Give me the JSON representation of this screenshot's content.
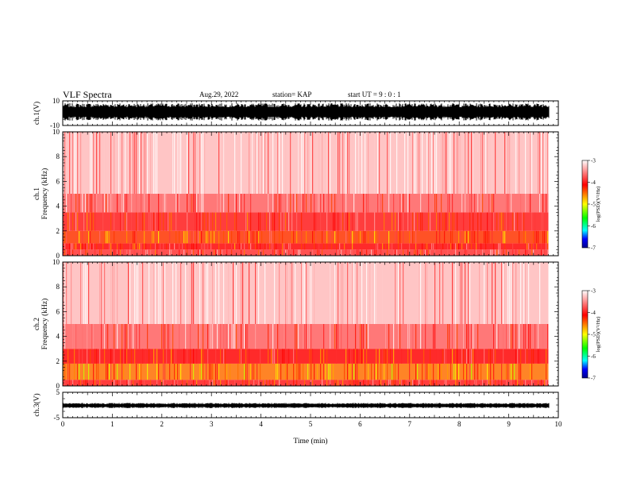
{
  "header": {
    "title": "VLF Spectra",
    "date": "Aug.29, 2022",
    "station": "station= KAP",
    "start": "start UT =  9 : 0 : 1"
  },
  "colors": {
    "colormap": [
      "#ffffff",
      "#ff0000",
      "#ffff00",
      "#00ff00",
      "#00ffff",
      "#0000ff",
      "#00008b"
    ]
  },
  "chart_data": [
    {
      "id": "ch1-waveform",
      "type": "line",
      "ylabel": "ch.1(V)",
      "ylim": [
        -10,
        10
      ],
      "yticks": [
        {
          "v": 10,
          "label": "10"
        },
        {
          "v": -10,
          "label": "-10"
        }
      ],
      "xlim": [
        0,
        10
      ],
      "series": [
        {
          "x": [
            0,
            9.8
          ],
          "envelope_V": [
            -6,
            8
          ]
        }
      ]
    },
    {
      "id": "ch1-spectrogram",
      "type": "heatmap",
      "ylabel": "ch.1\nFrequency (kHz)",
      "ylim": [
        0,
        10
      ],
      "yticks": [
        {
          "v": 0,
          "label": "0"
        },
        {
          "v": 2,
          "label": "2"
        },
        {
          "v": 4,
          "label": "4"
        },
        {
          "v": 6,
          "label": "6"
        },
        {
          "v": 8,
          "label": "8"
        },
        {
          "v": 10,
          "label": "10"
        }
      ],
      "xlim": [
        0,
        10
      ],
      "data_x_end_min": 9.8,
      "colorbar": {
        "label": "log(PSD)(V²/Hz)",
        "range": [
          -7,
          -3
        ],
        "ticks": [
          "-3",
          "-4",
          "-5",
          "-6",
          "-7"
        ]
      },
      "bands_kHz_log10PSD": [
        {
          "f": [
            0,
            0.5
          ],
          "log_psd": -3.9
        },
        {
          "f": [
            0.5,
            1.0
          ],
          "log_psd": -4.1
        },
        {
          "f": [
            1.0,
            2.0
          ],
          "log_psd": -4.3
        },
        {
          "f": [
            2.0,
            3.5
          ],
          "log_psd": -4.0
        },
        {
          "f": [
            3.5,
            5.0
          ],
          "log_psd": -3.7
        },
        {
          "f": [
            5.0,
            10.0
          ],
          "log_psd": -3.3
        }
      ]
    },
    {
      "id": "ch2-spectrogram",
      "type": "heatmap",
      "ylabel": "ch.2\nFrequency (kHz)",
      "ylim": [
        0,
        10
      ],
      "yticks": [
        {
          "v": 0,
          "label": "0"
        },
        {
          "v": 2,
          "label": "2"
        },
        {
          "v": 4,
          "label": "4"
        },
        {
          "v": 6,
          "label": "6"
        },
        {
          "v": 8,
          "label": "8"
        },
        {
          "v": 10,
          "label": "10"
        }
      ],
      "xlim": [
        0,
        10
      ],
      "data_x_end_min": 9.8,
      "colorbar": {
        "label": "log(PSD)(V²/Hz)",
        "range": [
          -7,
          -3
        ],
        "ticks": [
          "-3",
          "-4",
          "-5",
          "-6",
          "-7"
        ]
      },
      "bands_kHz_log10PSD": [
        {
          "f": [
            0,
            0.5
          ],
          "log_psd": -4.0
        },
        {
          "f": [
            0.5,
            1.8
          ],
          "log_psd": -4.5
        },
        {
          "f": [
            1.8,
            3.0
          ],
          "log_psd": -4.1
        },
        {
          "f": [
            3.0,
            5.0
          ],
          "log_psd": -3.7
        },
        {
          "f": [
            5.0,
            10.0
          ],
          "log_psd": -3.3
        }
      ]
    },
    {
      "id": "ch3-waveform",
      "type": "line",
      "ylabel": "ch.3(V)",
      "ylim": [
        -5,
        5
      ],
      "yticks": [
        {
          "v": 5,
          "label": "5"
        },
        {
          "v": -5,
          "label": "-5"
        }
      ],
      "xlim": [
        0,
        10
      ],
      "xlabel": "Time (min)",
      "xticks": [
        {
          "v": 0,
          "label": "0"
        },
        {
          "v": 1,
          "label": "1"
        },
        {
          "v": 2,
          "label": "2"
        },
        {
          "v": 3,
          "label": "3"
        },
        {
          "v": 4,
          "label": "4"
        },
        {
          "v": 5,
          "label": "5"
        },
        {
          "v": 6,
          "label": "6"
        },
        {
          "v": 7,
          "label": "7"
        },
        {
          "v": 8,
          "label": "8"
        },
        {
          "v": 9,
          "label": "9"
        },
        {
          "v": 10,
          "label": "10"
        }
      ],
      "series": [
        {
          "x": [
            0,
            9.8
          ],
          "envelope_V": [
            -1.2,
            0.8
          ]
        }
      ]
    }
  ]
}
